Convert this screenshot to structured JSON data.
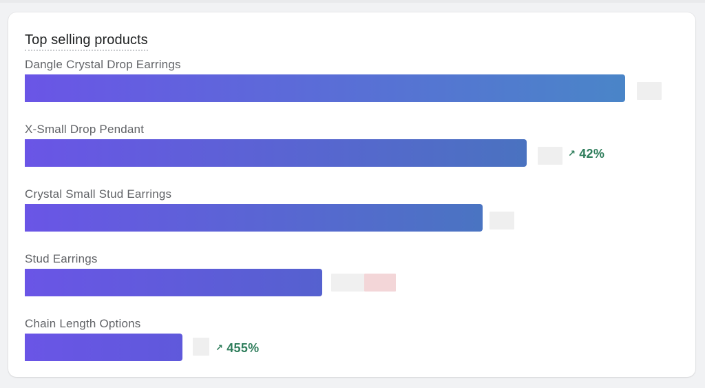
{
  "card": {
    "title": "Top selling products"
  },
  "products": [
    {
      "label": "Dangle Crystal Drop Earrings",
      "share_of_max": 1.0,
      "change": null,
      "bar_gradient": [
        "#6a55e6",
        "#4a85c8"
      ]
    },
    {
      "label": "X-Small Drop Pendant",
      "share_of_max": 0.836,
      "change": "42%",
      "bar_gradient": [
        "#6a55e6",
        "#4a72c0"
      ]
    },
    {
      "label": "Crystal Small Stud Earrings",
      "share_of_max": 0.763,
      "change": null,
      "bar_gradient": [
        "#6a55e6",
        "#4a74c2"
      ]
    },
    {
      "label": "Stud Earrings",
      "share_of_max": 0.495,
      "change": null,
      "bar_gradient": [
        "#6a55e6",
        "#5561cf"
      ]
    },
    {
      "label": "Chain Length Options",
      "share_of_max": 0.263,
      "change": "455%",
      "bar_gradient": [
        "#6a55e6",
        "#5f59db"
      ]
    }
  ],
  "colors": {
    "positive_change": "#2e7d5b",
    "redaction": "#eeeeee",
    "redaction_pink": "#f2d4d6"
  },
  "icons": {
    "increase": "arrow-up-right-icon"
  }
}
